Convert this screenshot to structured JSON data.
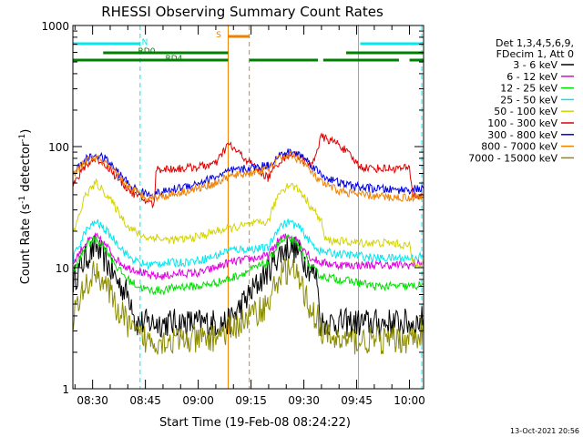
{
  "chart_data": {
    "type": "line",
    "title": "RHESSI Observing Summary Count Rates",
    "xlabel": "Start Time (19-Feb-08 08:24:22)",
    "ylabel_main": "Count Rate (s",
    "ylabel_sup1": "-1",
    "ylabel_mid": " detector",
    "ylabel_sup2": "-1",
    "ylabel_end": ")",
    "ylog": true,
    "ylim": [
      1,
      1000
    ],
    "xlim_min": [
      504.4,
      604
    ],
    "yticks": [
      {
        "v": 1,
        "label": "1"
      },
      {
        "v": 10,
        "label": "10"
      },
      {
        "v": 100,
        "label": "100"
      },
      {
        "v": 1000,
        "label": "1000"
      }
    ],
    "xticks": [
      {
        "v": 510,
        "label": "08:30"
      },
      {
        "v": 525,
        "label": "08:45"
      },
      {
        "v": 540,
        "label": "09:00"
      },
      {
        "v": 555,
        "label": "09:15"
      },
      {
        "v": 570,
        "label": "09:30"
      },
      {
        "v": 585,
        "label": "09:45"
      },
      {
        "v": 600,
        "label": "10:00"
      }
    ],
    "legend_header": [
      "Det 1,3,4,5,6,9,",
      "FDecim 1, Att 0"
    ],
    "legend_position": "right",
    "flag_bars": [
      {
        "label": "N",
        "color": "#00e8f0",
        "segments": [
          [
            504.4,
            523.5
          ],
          [
            586,
            604
          ]
        ]
      },
      {
        "label": "RD0",
        "color": "#008000",
        "segments": [
          [
            513,
            548.5
          ],
          [
            582,
            604
          ]
        ]
      },
      {
        "label": "RD4",
        "color": "#008000",
        "segments": [
          [
            504.4,
            548.5
          ],
          [
            554.5,
            574
          ],
          [
            575.5,
            597
          ],
          [
            600,
            604
          ]
        ]
      },
      {
        "label": "S",
        "color": "#f08000",
        "segments": [
          [
            548.5,
            554.5
          ]
        ]
      }
    ],
    "vlines": [
      {
        "x": 504.4,
        "color": "#00e8f0",
        "dash": false
      },
      {
        "x": 523.5,
        "color": "#00e8f0",
        "dash": true
      },
      {
        "x": 548.5,
        "color": "#f08000",
        "dash": false
      },
      {
        "x": 554.5,
        "color": "#f08000",
        "dash": true
      },
      {
        "x": 585.5,
        "color": "#00e8f0",
        "dash": false
      },
      {
        "x": 603.5,
        "color": "#00e8f0",
        "dash": true
      }
    ],
    "gap": [
      548.6,
      559.5
    ],
    "series": [
      {
        "name": "3 - 6 keV",
        "color": "#000000",
        "points": [
          [
            504.5,
            7.8
          ],
          [
            508,
            12
          ],
          [
            511,
            15
          ],
          [
            514,
            11
          ],
          [
            517,
            7.8
          ],
          [
            520,
            6
          ],
          [
            521.5,
            5
          ],
          [
            522,
            3.5
          ],
          [
            548.5,
            3.5
          ],
          [
            559.8,
            9.5
          ],
          [
            563,
            13
          ],
          [
            566,
            15
          ],
          [
            569,
            13
          ],
          [
            572,
            9.5
          ],
          [
            574,
            8
          ],
          [
            574.5,
            3.5
          ],
          [
            602,
            3.5
          ],
          [
            604,
            3.8
          ]
        ]
      },
      {
        "name": "6 - 12 keV",
        "color": "#e000e0",
        "points": [
          [
            504.5,
            11
          ],
          [
            508,
            16
          ],
          [
            511,
            18
          ],
          [
            514,
            15
          ],
          [
            517,
            11.5
          ],
          [
            520,
            10
          ],
          [
            523,
            9.5
          ],
          [
            526,
            8.5
          ],
          [
            530,
            8.5
          ],
          [
            535,
            9
          ],
          [
            540,
            9
          ],
          [
            545,
            10
          ],
          [
            548.5,
            11
          ],
          [
            559.8,
            12.5
          ],
          [
            563,
            17
          ],
          [
            566,
            18.5
          ],
          [
            569,
            16
          ],
          [
            572,
            12
          ],
          [
            575,
            11
          ],
          [
            580,
            10.5
          ],
          [
            586,
            10.5
          ],
          [
            590,
            10.5
          ],
          [
            595,
            10.5
          ],
          [
            600,
            10.5
          ],
          [
            604,
            11
          ]
        ]
      },
      {
        "name": "12 - 25 keV",
        "color": "#00e000",
        "points": [
          [
            504.5,
            9
          ],
          [
            508,
            15
          ],
          [
            511,
            17.5
          ],
          [
            514,
            14
          ],
          [
            517,
            10
          ],
          [
            520,
            8
          ],
          [
            523,
            7
          ],
          [
            526,
            6.5
          ],
          [
            530,
            6.5
          ],
          [
            535,
            7
          ],
          [
            540,
            7
          ],
          [
            545,
            7.5
          ],
          [
            548.5,
            8
          ],
          [
            559.8,
            11
          ],
          [
            563,
            16
          ],
          [
            566,
            17.5
          ],
          [
            569,
            14.5
          ],
          [
            572,
            10
          ],
          [
            575,
            8.5
          ],
          [
            580,
            8
          ],
          [
            586,
            7.5
          ],
          [
            590,
            7
          ],
          [
            595,
            7
          ],
          [
            600,
            7
          ],
          [
            604,
            7.2
          ]
        ]
      },
      {
        "name": "25 - 50 keV",
        "color": "#00e8f0",
        "points": [
          [
            504.5,
            12
          ],
          [
            508,
            20
          ],
          [
            511,
            24
          ],
          [
            514,
            20
          ],
          [
            517,
            16
          ],
          [
            520,
            12.5
          ],
          [
            523,
            11
          ],
          [
            526,
            10.5
          ],
          [
            530,
            11
          ],
          [
            535,
            11
          ],
          [
            540,
            11.5
          ],
          [
            545,
            12.5
          ],
          [
            548.5,
            14
          ],
          [
            559.8,
            14.5
          ],
          [
            563,
            22
          ],
          [
            566,
            24
          ],
          [
            569,
            21
          ],
          [
            572,
            16
          ],
          [
            575,
            13.5
          ],
          [
            580,
            13
          ],
          [
            586,
            12.5
          ],
          [
            590,
            12
          ],
          [
            595,
            12
          ],
          [
            600,
            12
          ],
          [
            604,
            12.5
          ]
        ]
      },
      {
        "name": "50 - 100 keV",
        "color": "#d4d400",
        "points": [
          [
            504.5,
            19
          ],
          [
            508,
            40
          ],
          [
            511,
            50
          ],
          [
            514,
            40
          ],
          [
            517,
            30
          ],
          [
            520,
            22
          ],
          [
            523,
            19
          ],
          [
            526,
            17.5
          ],
          [
            528,
            18
          ],
          [
            530,
            17
          ],
          [
            535,
            17
          ],
          [
            540,
            18
          ],
          [
            545,
            20
          ],
          [
            548.5,
            21
          ],
          [
            559.8,
            24
          ],
          [
            563,
            42
          ],
          [
            566,
            49
          ],
          [
            569,
            43
          ],
          [
            572,
            32
          ],
          [
            575,
            24
          ],
          [
            576,
            17
          ],
          [
            580,
            16.5
          ],
          [
            586,
            16
          ],
          [
            590,
            16
          ],
          [
            595,
            16
          ],
          [
            600,
            15
          ],
          [
            601,
            11
          ],
          [
            604,
            11
          ]
        ]
      },
      {
        "name": "100 - 300 keV",
        "color": "#e00000",
        "points": [
          [
            504.5,
            48
          ],
          [
            508,
            70
          ],
          [
            511,
            80
          ],
          [
            514,
            70
          ],
          [
            517,
            55
          ],
          [
            520,
            45
          ],
          [
            523,
            38
          ],
          [
            526,
            35
          ],
          [
            527.5,
            33
          ],
          [
            528,
            65
          ],
          [
            535,
            66
          ],
          [
            540,
            68
          ],
          [
            545,
            72
          ],
          [
            548.5,
            105
          ],
          [
            559.8,
            55
          ],
          [
            563,
            75
          ],
          [
            566,
            88
          ],
          [
            569,
            82
          ],
          [
            572,
            68
          ],
          [
            575,
            120
          ],
          [
            580,
            105
          ],
          [
            586,
            68
          ],
          [
            590,
            66
          ],
          [
            595,
            66
          ],
          [
            600,
            66
          ],
          [
            601,
            40
          ],
          [
            604,
            38
          ]
        ]
      },
      {
        "name": "300 - 800 keV",
        "color": "#0000e0",
        "points": [
          [
            504.5,
            60
          ],
          [
            508,
            78
          ],
          [
            511,
            85
          ],
          [
            514,
            78
          ],
          [
            517,
            62
          ],
          [
            520,
            50
          ],
          [
            523,
            43
          ],
          [
            526,
            40
          ],
          [
            530,
            42
          ],
          [
            535,
            46
          ],
          [
            540,
            50
          ],
          [
            545,
            56
          ],
          [
            548.5,
            62
          ],
          [
            559.8,
            70
          ],
          [
            563,
            84
          ],
          [
            566,
            90
          ],
          [
            569,
            86
          ],
          [
            572,
            72
          ],
          [
            575,
            58
          ],
          [
            580,
            50
          ],
          [
            586,
            46
          ],
          [
            590,
            45
          ],
          [
            595,
            44
          ],
          [
            600,
            44
          ],
          [
            604,
            45
          ]
        ]
      },
      {
        "name": "800 - 7000 keV",
        "color": "#f08000",
        "points": [
          [
            504.5,
            58
          ],
          [
            508,
            75
          ],
          [
            511,
            82
          ],
          [
            514,
            72
          ],
          [
            517,
            58
          ],
          [
            520,
            47
          ],
          [
            523,
            41
          ],
          [
            526,
            38
          ],
          [
            530,
            39
          ],
          [
            535,
            42
          ],
          [
            540,
            45
          ],
          [
            545,
            50
          ],
          [
            548.5,
            56
          ],
          [
            559.8,
            65
          ],
          [
            563,
            80
          ],
          [
            566,
            85
          ],
          [
            569,
            78
          ],
          [
            572,
            62
          ],
          [
            575,
            50
          ],
          [
            580,
            43
          ],
          [
            586,
            40
          ],
          [
            590,
            39
          ],
          [
            595,
            38
          ],
          [
            600,
            38
          ],
          [
            604,
            39
          ]
        ]
      },
      {
        "name": "7000 - 15000 keV",
        "color": "#8c8c00",
        "points": [
          [
            504.5,
            4
          ],
          [
            508,
            7
          ],
          [
            511,
            9.5
          ],
          [
            514,
            7
          ],
          [
            517,
            4.5
          ],
          [
            520,
            3.5
          ],
          [
            522,
            2.8
          ],
          [
            526,
            2.5
          ],
          [
            530,
            2.5
          ],
          [
            535,
            2.5
          ],
          [
            540,
            2.5
          ],
          [
            544,
            2.6
          ],
          [
            545,
            2.8
          ],
          [
            548.5,
            3
          ],
          [
            559.8,
            5
          ],
          [
            563,
            8.5
          ],
          [
            566,
            10
          ],
          [
            569,
            7.5
          ],
          [
            572,
            4.5
          ],
          [
            574,
            3.8
          ],
          [
            575,
            2.8
          ],
          [
            580,
            2.5
          ],
          [
            586,
            2.5
          ],
          [
            590,
            2.5
          ],
          [
            595,
            2.5
          ],
          [
            600,
            2.6
          ],
          [
            604,
            3
          ]
        ]
      }
    ]
  },
  "footer": {
    "timestamp": "13-Oct-2021 20:56"
  }
}
